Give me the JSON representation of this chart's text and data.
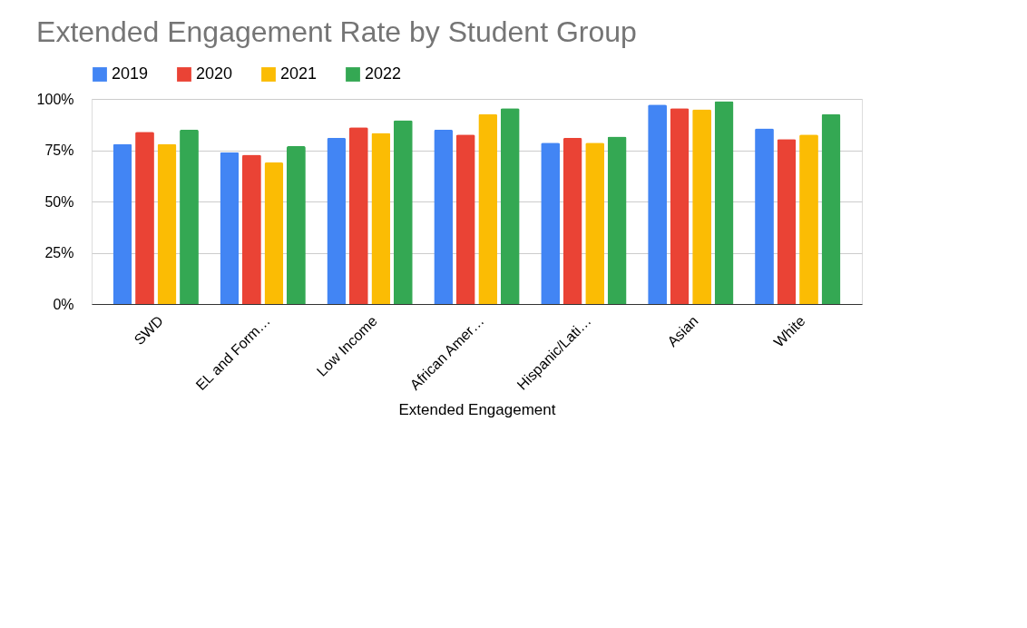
{
  "chart_data": {
    "type": "bar",
    "title": "Extended Engagement Rate by Student Group",
    "xlabel": "Extended Engagement",
    "categories": [
      "SWD",
      "EL and Form…",
      "Low Income",
      "African Amer…",
      "Hispanic/Lati…",
      "Asian",
      "White"
    ],
    "series": [
      {
        "name": "2019",
        "color": "#4285f4",
        "values": [
          78,
          74,
          81,
          85,
          78.6,
          97.2,
          85.6
        ]
      },
      {
        "name": "2020",
        "color": "#ea4335",
        "values": [
          84,
          72.8,
          86.2,
          82.6,
          81,
          95.5,
          80.4
        ]
      },
      {
        "name": "2021",
        "color": "#fbbc04",
        "values": [
          78,
          69,
          83.4,
          92.6,
          78.6,
          94.9,
          82.6
        ]
      },
      {
        "name": "2022",
        "color": "#34a853",
        "values": [
          85,
          77,
          89.6,
          95.5,
          81.6,
          98.9,
          92.6
        ]
      }
    ],
    "ylim": [
      0,
      100
    ],
    "yticks": [
      {
        "value": 0,
        "label": "0%"
      },
      {
        "value": 25,
        "label": "25%"
      },
      {
        "value": 50,
        "label": "50%"
      },
      {
        "value": 75,
        "label": "75%"
      },
      {
        "value": 100,
        "label": "100%"
      }
    ],
    "grid": "y",
    "legend": "top"
  }
}
